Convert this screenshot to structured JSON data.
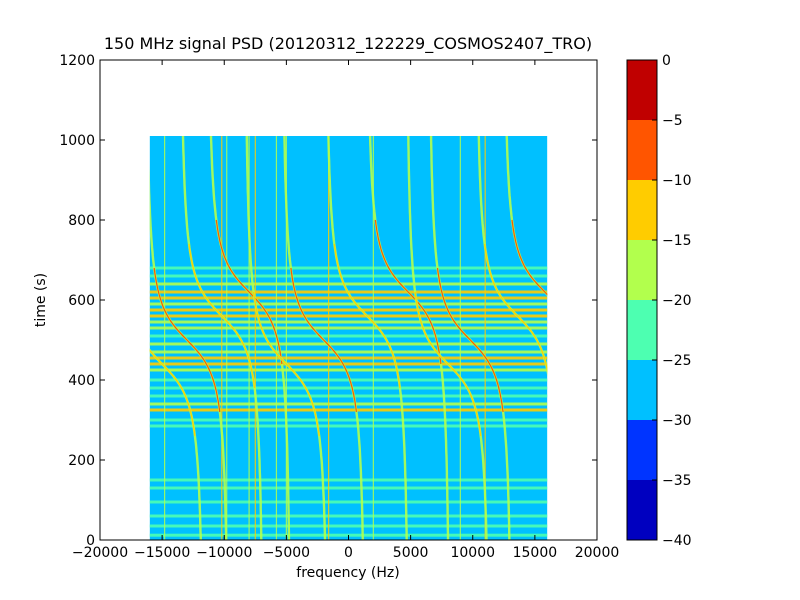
{
  "chart_data": {
    "type": "heatmap",
    "title": "150 MHz signal PSD (20120312_122229_COSMOS2407_TRO)",
    "xlabel": "frequency (Hz)",
    "ylabel": "time (s)",
    "xlim": [
      -20000,
      20000
    ],
    "ylim": [
      0,
      1200
    ],
    "x_ticks": [
      -20000,
      -15000,
      -10000,
      -5000,
      0,
      5000,
      10000,
      15000,
      20000
    ],
    "y_ticks": [
      0,
      200,
      400,
      600,
      800,
      1000,
      1200
    ],
    "x_tick_labels": [
      "−20000",
      "−15000",
      "−10000",
      "−5000",
      "0",
      "5000",
      "10000",
      "15000",
      "20000"
    ],
    "y_tick_labels": [
      "0",
      "200",
      "400",
      "600",
      "800",
      "1000",
      "1200"
    ],
    "data_extent": {
      "x": [
        -16000,
        16000
      ],
      "y": [
        0,
        1010
      ]
    },
    "background_level_db": -27,
    "colorbar": {
      "levels": [
        -40,
        -35,
        -30,
        -25,
        -20,
        -15,
        -10,
        -5,
        0
      ],
      "tick_labels": [
        "−40",
        "−35",
        "−30",
        "−25",
        "−20",
        "−15",
        "−10",
        "−5",
        "0"
      ],
      "colors": [
        "#0000c0",
        "#0034ff",
        "#00c0ff",
        "#4dffb1",
        "#b2ff4d",
        "#ffcc00",
        "#ff5500",
        "#c00000"
      ]
    },
    "doppler_center_times_s": [
      440,
      500,
      560,
      620
    ],
    "doppler_traces_x_hz": [
      -15000,
      -13000,
      -10200,
      -8000,
      -5000,
      -2000,
      1500,
      4800,
      8000,
      9800,
      13600,
      15800
    ],
    "vertical_lines_x_hz": [
      -14800,
      -10200,
      -9800,
      -8000,
      -7500,
      -5800,
      -5000,
      -1600,
      2000,
      9000,
      11000
    ],
    "horizontal_bands_time_s": [
      {
        "y": 680,
        "level": -22
      },
      {
        "y": 660,
        "level": -22
      },
      {
        "y": 640,
        "level": -18
      },
      {
        "y": 620,
        "level": -15
      },
      {
        "y": 605,
        "level": -14
      },
      {
        "y": 590,
        "level": -20
      },
      {
        "y": 575,
        "level": -15
      },
      {
        "y": 560,
        "level": -12
      },
      {
        "y": 545,
        "level": -18
      },
      {
        "y": 530,
        "level": -20
      },
      {
        "y": 510,
        "level": -22
      },
      {
        "y": 490,
        "level": -20
      },
      {
        "y": 470,
        "level": -18
      },
      {
        "y": 455,
        "level": -15
      },
      {
        "y": 440,
        "level": -14
      },
      {
        "y": 425,
        "level": -20
      },
      {
        "y": 400,
        "level": -22
      },
      {
        "y": 380,
        "level": -23
      },
      {
        "y": 360,
        "level": -22
      },
      {
        "y": 340,
        "level": -20
      },
      {
        "y": 325,
        "level": -15
      },
      {
        "y": 300,
        "level": -21
      },
      {
        "y": 285,
        "level": -22
      },
      {
        "y": 150,
        "level": -23
      },
      {
        "y": 130,
        "level": -23
      },
      {
        "y": 95,
        "level": -24
      },
      {
        "y": 60,
        "level": -24
      },
      {
        "y": 35,
        "level": -24
      },
      {
        "y": 12,
        "level": -24
      }
    ]
  }
}
